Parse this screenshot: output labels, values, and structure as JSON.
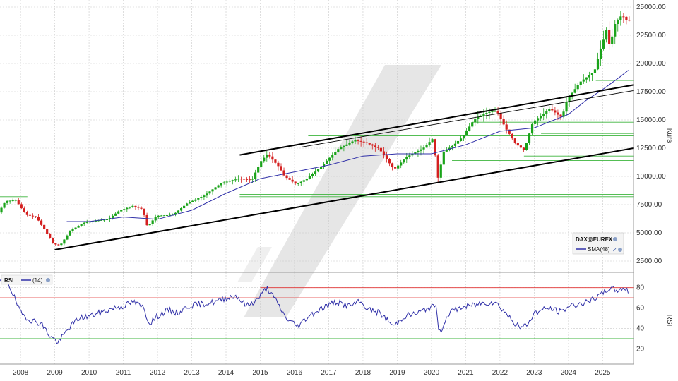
{
  "colors": {
    "background": "#ffffff",
    "grid": "#c8c8c8",
    "up_candle": "#1aa31a",
    "down_candle": "#d42020",
    "sma": "#3030a8",
    "rsi_line": "#3030a8",
    "channel": "#000000",
    "support_line": "#3cb43c",
    "rsi_overbought": "#e03030",
    "watermark": "#e6e6e6"
  },
  "icons": {
    "settings": "gear-icon",
    "visible": "check-icon"
  },
  "chart_data": [
    {
      "type": "candlestick",
      "instrument": "DAX@EUREX",
      "ylabel": "Kurs",
      "ylim": [
        1500,
        25500
      ],
      "yticks": [
        "2500.00",
        "5000.00",
        "7500.00",
        "10000.00",
        "12500.00",
        "15000.00",
        "17500.00",
        "20000.00",
        "22500.00",
        "25000.00"
      ],
      "xticks": [
        "2008",
        "2009",
        "2010",
        "2011",
        "2012",
        "2013",
        "2014",
        "2015",
        "2016",
        "2017",
        "2018",
        "2019",
        "2020",
        "2021",
        "2022",
        "2023",
        "2024",
        "2025"
      ],
      "xlim": [
        2007.4,
        2025.9
      ],
      "close_anchors": [
        [
          2007.4,
          6800
        ],
        [
          2007.6,
          7800
        ],
        [
          2007.9,
          7900
        ],
        [
          2008.2,
          6600
        ],
        [
          2008.5,
          6400
        ],
        [
          2008.8,
          5000
        ],
        [
          2009.0,
          4000
        ],
        [
          2009.2,
          3900
        ],
        [
          2009.5,
          5200
        ],
        [
          2009.9,
          5900
        ],
        [
          2010.3,
          6100
        ],
        [
          2010.6,
          6200
        ],
        [
          2010.9,
          6900
        ],
        [
          2011.3,
          7400
        ],
        [
          2011.6,
          7100
        ],
        [
          2011.75,
          5500
        ],
        [
          2012.0,
          6500
        ],
        [
          2012.5,
          6600
        ],
        [
          2012.9,
          7600
        ],
        [
          2013.4,
          8300
        ],
        [
          2013.9,
          9400
        ],
        [
          2014.4,
          9800
        ],
        [
          2014.8,
          9700
        ],
        [
          2015.05,
          11300
        ],
        [
          2015.25,
          12000
        ],
        [
          2015.6,
          10800
        ],
        [
          2015.75,
          10000
        ],
        [
          2016.1,
          9300
        ],
        [
          2016.4,
          9800
        ],
        [
          2016.8,
          10800
        ],
        [
          2017.3,
          12400
        ],
        [
          2017.8,
          13200
        ],
        [
          2018.1,
          13000
        ],
        [
          2018.5,
          12500
        ],
        [
          2018.95,
          10600
        ],
        [
          2019.3,
          11700
        ],
        [
          2019.8,
          12500
        ],
        [
          2020.1,
          13400
        ],
        [
          2020.22,
          9700
        ],
        [
          2020.4,
          12200
        ],
        [
          2020.7,
          12800
        ],
        [
          2020.95,
          13500
        ],
        [
          2021.3,
          15100
        ],
        [
          2021.7,
          15700
        ],
        [
          2021.95,
          15800
        ],
        [
          2022.2,
          14300
        ],
        [
          2022.5,
          12900
        ],
        [
          2022.75,
          12300
        ],
        [
          2023.0,
          14800
        ],
        [
          2023.5,
          16000
        ],
        [
          2023.85,
          15200
        ],
        [
          2024.0,
          16800
        ],
        [
          2024.4,
          18400
        ],
        [
          2024.8,
          19300
        ],
        [
          2025.0,
          21500
        ],
        [
          2025.15,
          23000
        ],
        [
          2025.25,
          21500
        ],
        [
          2025.4,
          23500
        ],
        [
          2025.6,
          24300
        ],
        [
          2025.75,
          23800
        ]
      ],
      "sma": {
        "name": "SMA(48)",
        "points": [
          [
            2009.35,
            6000
          ],
          [
            2010.0,
            6000
          ],
          [
            2011.0,
            6400
          ],
          [
            2012.0,
            6200
          ],
          [
            2013.0,
            7000
          ],
          [
            2014.0,
            8500
          ],
          [
            2015.0,
            9800
          ],
          [
            2016.0,
            10400
          ],
          [
            2017.0,
            11000
          ],
          [
            2018.0,
            11800
          ],
          [
            2019.0,
            12000
          ],
          [
            2020.0,
            12000
          ],
          [
            2021.0,
            12800
          ],
          [
            2022.0,
            14000
          ],
          [
            2023.0,
            14300
          ],
          [
            2024.0,
            15500
          ],
          [
            2024.5,
            16700
          ],
          [
            2025.0,
            17700
          ],
          [
            2025.5,
            18800
          ],
          [
            2025.75,
            19400
          ]
        ]
      },
      "channel_lines": [
        {
          "from": [
            2009.0,
            3500
          ],
          "to": [
            2025.9,
            12500
          ],
          "style": "thick"
        },
        {
          "from": [
            2014.4,
            11900
          ],
          "to": [
            2025.9,
            18100
          ],
          "style": "thick"
        },
        {
          "from": [
            2016.2,
            12600
          ],
          "to": [
            2025.9,
            17600
          ],
          "style": "thin"
        }
      ],
      "support_lines": [
        {
          "y": 8200,
          "from": 2007.4,
          "to": 2008.2
        },
        {
          "y": 8200,
          "from": 2014.4,
          "to": 2025.9
        },
        {
          "y": 8400,
          "from": 2014.4,
          "to": 2025.9
        },
        {
          "y": 11400,
          "from": 2020.6,
          "to": 2025.9
        },
        {
          "y": 11800,
          "from": 2022.7,
          "to": 2025.9
        },
        {
          "y": 13600,
          "from": 2016.4,
          "to": 2025.9
        },
        {
          "y": 13800,
          "from": 2023.2,
          "to": 2025.9
        },
        {
          "y": 14800,
          "from": 2021.2,
          "to": 2025.9
        },
        {
          "y": 18500,
          "from": 2024.8,
          "to": 2025.9
        }
      ],
      "legend": {
        "instrument": "DAX@EUREX",
        "series_label": "SMA(48)",
        "position": "bottom-right"
      }
    },
    {
      "type": "line",
      "title": "RSI",
      "period_label": "(14)",
      "ylabel": "RSI",
      "ylim": [
        5,
        95
      ],
      "yticks": [
        "20",
        "40",
        "60",
        "80"
      ],
      "reference_lines": [
        {
          "y": 80,
          "from": 2015.0,
          "to": 2025.9,
          "color": "#e03030"
        },
        {
          "y": 70,
          "from": 2007.4,
          "to": 2025.9,
          "color": "#e03030"
        },
        {
          "y": 30,
          "from": 2007.4,
          "to": 2025.9,
          "color": "#3cb43c"
        }
      ],
      "points": [
        [
          2007.4,
          85
        ],
        [
          2007.6,
          88
        ],
        [
          2007.8,
          72
        ],
        [
          2008.0,
          55
        ],
        [
          2008.3,
          48
        ],
        [
          2008.6,
          45
        ],
        [
          2008.85,
          33
        ],
        [
          2009.1,
          26
        ],
        [
          2009.4,
          40
        ],
        [
          2009.7,
          50
        ],
        [
          2010.0,
          52
        ],
        [
          2010.3,
          55
        ],
        [
          2010.7,
          60
        ],
        [
          2011.0,
          62
        ],
        [
          2011.3,
          66
        ],
        [
          2011.6,
          60
        ],
        [
          2011.75,
          45
        ],
        [
          2012.0,
          52
        ],
        [
          2012.3,
          58
        ],
        [
          2012.6,
          55
        ],
        [
          2012.9,
          62
        ],
        [
          2013.3,
          64
        ],
        [
          2013.7,
          66
        ],
        [
          2014.0,
          70
        ],
        [
          2014.3,
          72
        ],
        [
          2014.6,
          62
        ],
        [
          2014.9,
          68
        ],
        [
          2015.2,
          80
        ],
        [
          2015.5,
          65
        ],
        [
          2015.75,
          50
        ],
        [
          2016.1,
          42
        ],
        [
          2016.4,
          52
        ],
        [
          2016.8,
          60
        ],
        [
          2017.2,
          66
        ],
        [
          2017.6,
          62
        ],
        [
          2017.9,
          66
        ],
        [
          2018.2,
          58
        ],
        [
          2018.5,
          55
        ],
        [
          2018.9,
          42
        ],
        [
          2019.2,
          52
        ],
        [
          2019.6,
          55
        ],
        [
          2019.9,
          60
        ],
        [
          2020.15,
          62
        ],
        [
          2020.22,
          34
        ],
        [
          2020.5,
          55
        ],
        [
          2020.8,
          60
        ],
        [
          2021.1,
          62
        ],
        [
          2021.5,
          65
        ],
        [
          2021.85,
          66
        ],
        [
          2022.1,
          58
        ],
        [
          2022.35,
          48
        ],
        [
          2022.6,
          40
        ],
        [
          2022.8,
          44
        ],
        [
          2023.0,
          55
        ],
        [
          2023.4,
          60
        ],
        [
          2023.8,
          56
        ],
        [
          2024.0,
          62
        ],
        [
          2024.3,
          64
        ],
        [
          2024.6,
          66
        ],
        [
          2025.0,
          74
        ],
        [
          2025.2,
          80
        ],
        [
          2025.4,
          77
        ],
        [
          2025.6,
          80
        ],
        [
          2025.75,
          76
        ]
      ]
    }
  ]
}
